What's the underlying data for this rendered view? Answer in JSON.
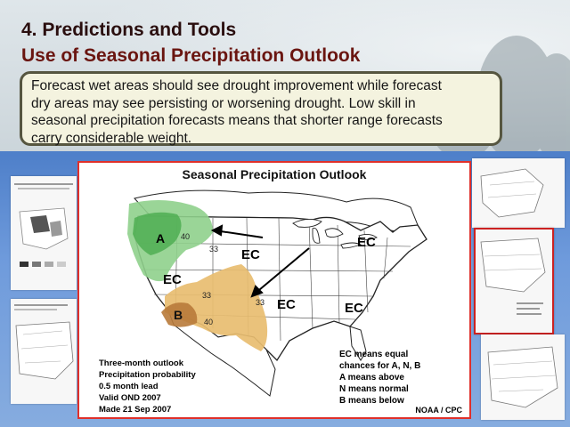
{
  "slide": {
    "title_line1": "4. Predictions and Tools",
    "title_line2": "Use of Seasonal Precipitation Outlook",
    "body_lines": [
      "Forecast wet areas should see drought improvement while forecast",
      "dry areas may see persisting or worsening drought. Low skill in",
      "seasonal precipitation forecasts means that shorter range forecasts",
      "carry considerable weight."
    ]
  },
  "map": {
    "title": "Seasonal Precipitation Outlook",
    "labels": {
      "a": "A",
      "b": "B",
      "ec": "EC"
    },
    "contours": {
      "c40": "40",
      "c33": "33"
    },
    "info_lines": [
      "Three-month outlook",
      "Precipitation probability",
      "0.5 month lead",
      "Valid OND 2007",
      "Made 21 Sep 2007"
    ],
    "legend_lines": [
      "EC means equal",
      "chances for A, N, B",
      "A means above",
      "N means normal",
      "B means below"
    ],
    "credit": "NOAA / CPC",
    "colors": {
      "above": "#8fd08c",
      "above_dark": "#4fae52",
      "below": "#e8bd70",
      "below_dark": "#b87a3a"
    }
  }
}
